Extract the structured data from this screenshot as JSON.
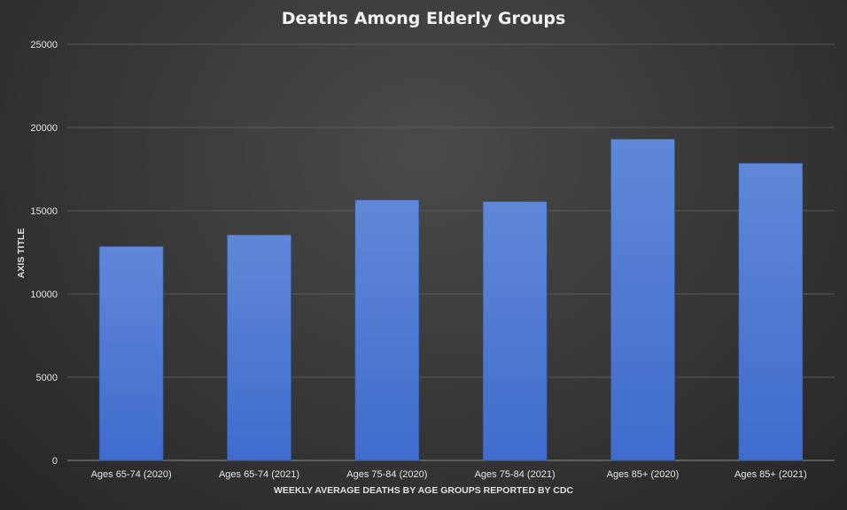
{
  "chart_data": {
    "type": "bar",
    "title": "Deaths Among Elderly Groups",
    "xlabel": "WEEKLY AVERAGE DEATHS BY AGE GROUPS REPORTED BY CDC",
    "ylabel": "AXIS TITLE",
    "categories": [
      "Ages 65-74 (2020)",
      "Ages 65-74 (2021)",
      "Ages 75-84 (2020)",
      "Ages 75-84 (2021)",
      "Ages 85+ (2020)",
      "Ages 85+ (2021)"
    ],
    "values": [
      12850,
      13550,
      15650,
      15550,
      19300,
      17850
    ],
    "ylim": [
      0,
      25000
    ],
    "yticks": [
      0,
      5000,
      10000,
      15000,
      20000,
      25000
    ],
    "grid": true,
    "legend": "none",
    "colors": {
      "bar_top": "#6088d8",
      "bar_bottom": "#3f6ccd",
      "gridline": "#5a5a5a",
      "axis_line": "#8c8c8c",
      "text": "#e6e6e6"
    }
  }
}
